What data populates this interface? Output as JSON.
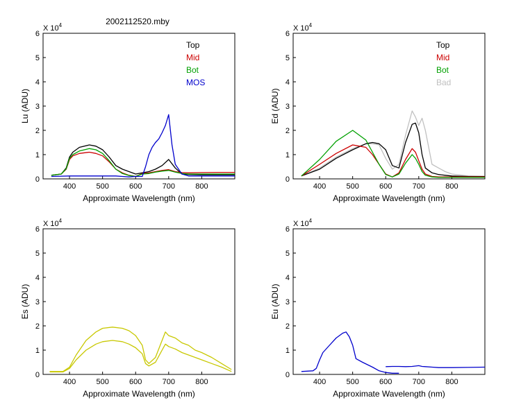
{
  "title": "2002112520.mby",
  "multiplier": "X 10",
  "multiplier_exp": "4",
  "chart_data": [
    {
      "id": "lu",
      "type": "line",
      "ylabel": "Lu (ADU)",
      "xlabel": "Approximate Wavelength (nm)",
      "xlim": [
        320,
        900
      ],
      "ylim": [
        0,
        6
      ],
      "xticks": [
        "400",
        "500",
        "600",
        "700",
        "800"
      ],
      "yticks": [
        "0",
        "1",
        "2",
        "3",
        "4",
        "5",
        "6"
      ],
      "legend": {
        "placement": "top-right",
        "entries": [
          {
            "label": "Top",
            "color": "#000000"
          },
          {
            "label": "Mid",
            "color": "#cc0000"
          },
          {
            "label": "Bot",
            "color": "#00a000"
          },
          {
            "label": "MOS",
            "color": "#0000cc"
          }
        ]
      },
      "series": [
        {
          "name": "Top",
          "color": "#000000",
          "x": [
            345,
            375,
            390,
            400,
            410,
            430,
            460,
            480,
            500,
            520,
            540,
            560,
            580,
            600,
            620,
            640,
            660,
            680,
            700,
            720,
            740,
            760,
            800,
            850,
            900
          ],
          "y": [
            0.15,
            0.2,
            0.45,
            0.9,
            1.1,
            1.3,
            1.4,
            1.35,
            1.2,
            0.9,
            0.55,
            0.4,
            0.3,
            0.2,
            0.25,
            0.3,
            0.4,
            0.55,
            0.8,
            0.45,
            0.2,
            0.18,
            0.17,
            0.17,
            0.17
          ]
        },
        {
          "name": "Mid",
          "color": "#cc0000",
          "x": [
            345,
            375,
            390,
            400,
            410,
            430,
            460,
            480,
            500,
            520,
            540,
            560,
            580,
            600,
            620,
            640,
            660,
            680,
            700,
            720,
            740,
            760,
            800,
            850,
            900
          ],
          "y": [
            0.15,
            0.2,
            0.4,
            0.8,
            0.95,
            1.05,
            1.1,
            1.05,
            0.95,
            0.7,
            0.4,
            0.25,
            0.15,
            0.1,
            0.22,
            0.25,
            0.3,
            0.35,
            0.38,
            0.3,
            0.26,
            0.25,
            0.26,
            0.27,
            0.27
          ]
        },
        {
          "name": "Bot",
          "color": "#00a000",
          "x": [
            345,
            375,
            390,
            400,
            410,
            430,
            460,
            480,
            500,
            520,
            540,
            560,
            580,
            600,
            620,
            640,
            660,
            680,
            700,
            720,
            740,
            760,
            800,
            850,
            900
          ],
          "y": [
            0.15,
            0.2,
            0.42,
            0.85,
            1.0,
            1.15,
            1.25,
            1.2,
            1.05,
            0.75,
            0.4,
            0.22,
            0.14,
            0.1,
            0.2,
            0.22,
            0.28,
            0.32,
            0.35,
            0.28,
            0.22,
            0.2,
            0.2,
            0.2,
            0.2
          ]
        },
        {
          "name": "MOS",
          "color": "#0000cc",
          "x": [
            345,
            400,
            450,
            500,
            540,
            560,
            580,
            600,
            620,
            630,
            640,
            650,
            660,
            670,
            680,
            690,
            700,
            710,
            720,
            740,
            760,
            800,
            850,
            900
          ],
          "y": [
            0.1,
            0.12,
            0.12,
            0.12,
            0.12,
            0.1,
            0.08,
            0.1,
            0.1,
            0.5,
            1.0,
            1.3,
            1.5,
            1.65,
            1.9,
            2.2,
            2.65,
            1.4,
            0.6,
            0.2,
            0.12,
            0.12,
            0.12,
            0.12
          ]
        }
      ]
    },
    {
      "id": "ed",
      "type": "line",
      "ylabel": "Ed (ADU)",
      "xlabel": "Approximate Wavelength (nm)",
      "xlim": [
        320,
        900
      ],
      "ylim": [
        0,
        6
      ],
      "xticks": [
        "400",
        "500",
        "600",
        "700",
        "800"
      ],
      "yticks": [
        "0",
        "1",
        "2",
        "3",
        "4",
        "5",
        "6"
      ],
      "legend": {
        "placement": "top-right",
        "entries": [
          {
            "label": "Top",
            "color": "#000000"
          },
          {
            "label": "Mid",
            "color": "#cc0000"
          },
          {
            "label": "Bot",
            "color": "#00a000"
          },
          {
            "label": "Bad",
            "color": "#c0c0c0"
          }
        ]
      },
      "series": [
        {
          "name": "Bad",
          "color": "#c0c0c0",
          "x": [
            345,
            400,
            450,
            500,
            540,
            560,
            580,
            600,
            620,
            640,
            660,
            680,
            690,
            700,
            710,
            720,
            740,
            760,
            780,
            800,
            850,
            900
          ],
          "y": [
            0.12,
            0.45,
            0.9,
            1.25,
            1.45,
            1.45,
            1.4,
            0.85,
            0.4,
            0.6,
            1.8,
            2.8,
            2.55,
            2.2,
            2.5,
            2.0,
            0.6,
            0.45,
            0.3,
            0.2,
            0.12,
            0.1
          ]
        },
        {
          "name": "Top",
          "color": "#000000",
          "x": [
            345,
            400,
            450,
            500,
            540,
            560,
            580,
            600,
            620,
            640,
            660,
            680,
            690,
            700,
            710,
            720,
            740,
            760,
            780,
            800,
            850,
            900
          ],
          "y": [
            0.12,
            0.4,
            0.85,
            1.2,
            1.45,
            1.5,
            1.45,
            1.2,
            0.55,
            0.45,
            1.5,
            2.25,
            2.3,
            1.9,
            1.0,
            0.45,
            0.25,
            0.18,
            0.15,
            0.12,
            0.1,
            0.1
          ]
        },
        {
          "name": "Mid",
          "color": "#cc0000",
          "x": [
            345,
            400,
            450,
            500,
            540,
            560,
            580,
            600,
            620,
            640,
            660,
            680,
            690,
            700,
            710,
            720,
            740,
            760,
            780,
            800,
            850,
            900
          ],
          "y": [
            0.12,
            0.6,
            1.05,
            1.4,
            1.3,
            1.0,
            0.6,
            0.2,
            0.08,
            0.25,
            0.8,
            1.25,
            1.1,
            0.75,
            0.4,
            0.2,
            0.1,
            0.08,
            0.08,
            0.08,
            0.08,
            0.08
          ]
        },
        {
          "name": "Bot",
          "color": "#00a000",
          "x": [
            345,
            400,
            450,
            500,
            540,
            560,
            580,
            600,
            620,
            640,
            660,
            680,
            690,
            700,
            710,
            720,
            740,
            760,
            780,
            800,
            850,
            900
          ],
          "y": [
            0.12,
            0.8,
            1.55,
            2.0,
            1.6,
            1.1,
            0.6,
            0.18,
            0.08,
            0.2,
            0.65,
            1.0,
            0.85,
            0.6,
            0.3,
            0.15,
            0.08,
            0.06,
            0.06,
            0.06,
            0.06,
            0.06
          ]
        }
      ]
    },
    {
      "id": "es",
      "type": "line",
      "ylabel": "Es (ADU)",
      "xlabel": "Approximate Wavelength (nm)",
      "xlim": [
        320,
        900
      ],
      "ylim": [
        0,
        6
      ],
      "xticks": [
        "400",
        "500",
        "600",
        "700",
        "800"
      ],
      "yticks": [
        "0",
        "1",
        "2",
        "3",
        "4",
        "5",
        "6"
      ],
      "series": [
        {
          "name": "",
          "color": "#c8c800",
          "x": [
            340,
            380,
            400,
            420,
            450,
            480,
            500,
            530,
            560,
            580,
            600,
            620,
            630,
            640,
            660,
            680,
            690,
            700,
            720,
            740,
            760,
            780,
            800,
            830,
            860,
            890
          ],
          "y": [
            0.12,
            0.12,
            0.3,
            0.8,
            1.4,
            1.75,
            1.9,
            1.95,
            1.9,
            1.8,
            1.6,
            1.2,
            0.6,
            0.45,
            0.7,
            1.4,
            1.75,
            1.6,
            1.5,
            1.3,
            1.2,
            1.0,
            0.9,
            0.7,
            0.45,
            0.2
          ]
        },
        {
          "name": "",
          "color": "#c8c800",
          "x": [
            340,
            380,
            400,
            420,
            450,
            480,
            500,
            530,
            560,
            580,
            600,
            620,
            630,
            640,
            660,
            680,
            690,
            700,
            720,
            740,
            760,
            780,
            800,
            830,
            860,
            890
          ],
          "y": [
            0.1,
            0.1,
            0.25,
            0.6,
            1.0,
            1.25,
            1.35,
            1.4,
            1.35,
            1.25,
            1.1,
            0.85,
            0.45,
            0.35,
            0.5,
            1.0,
            1.25,
            1.15,
            1.05,
            0.9,
            0.8,
            0.7,
            0.6,
            0.45,
            0.3,
            0.12
          ]
        }
      ]
    },
    {
      "id": "eu",
      "type": "line",
      "ylabel": "Eu (ADU)",
      "xlabel": "Approximate Wavelength (nm)",
      "xlim": [
        320,
        900
      ],
      "ylim": [
        0,
        6
      ],
      "xticks": [
        "400",
        "500",
        "600",
        "700",
        "800"
      ],
      "yticks": [
        "0",
        "1",
        "2",
        "3",
        "4",
        "5",
        "6"
      ],
      "series": [
        {
          "name": "",
          "color": "#0000cc",
          "x": [
            345,
            380,
            390,
            400,
            410,
            430,
            450,
            470,
            480,
            490,
            500,
            510,
            530,
            560,
            580,
            600,
            620,
            640
          ],
          "y": [
            0.12,
            0.15,
            0.25,
            0.6,
            0.9,
            1.2,
            1.5,
            1.7,
            1.75,
            1.55,
            1.2,
            0.65,
            0.5,
            0.3,
            0.15,
            0.08,
            0.05,
            0.05
          ]
        },
        {
          "name": "",
          "color": "#0000cc",
          "x": [
            600,
            620,
            640,
            660,
            680,
            700,
            710,
            720,
            740,
            760,
            800,
            850,
            900
          ],
          "y": [
            0.32,
            0.33,
            0.33,
            0.32,
            0.33,
            0.36,
            0.33,
            0.32,
            0.3,
            0.28,
            0.28,
            0.29,
            0.3
          ]
        }
      ]
    }
  ]
}
